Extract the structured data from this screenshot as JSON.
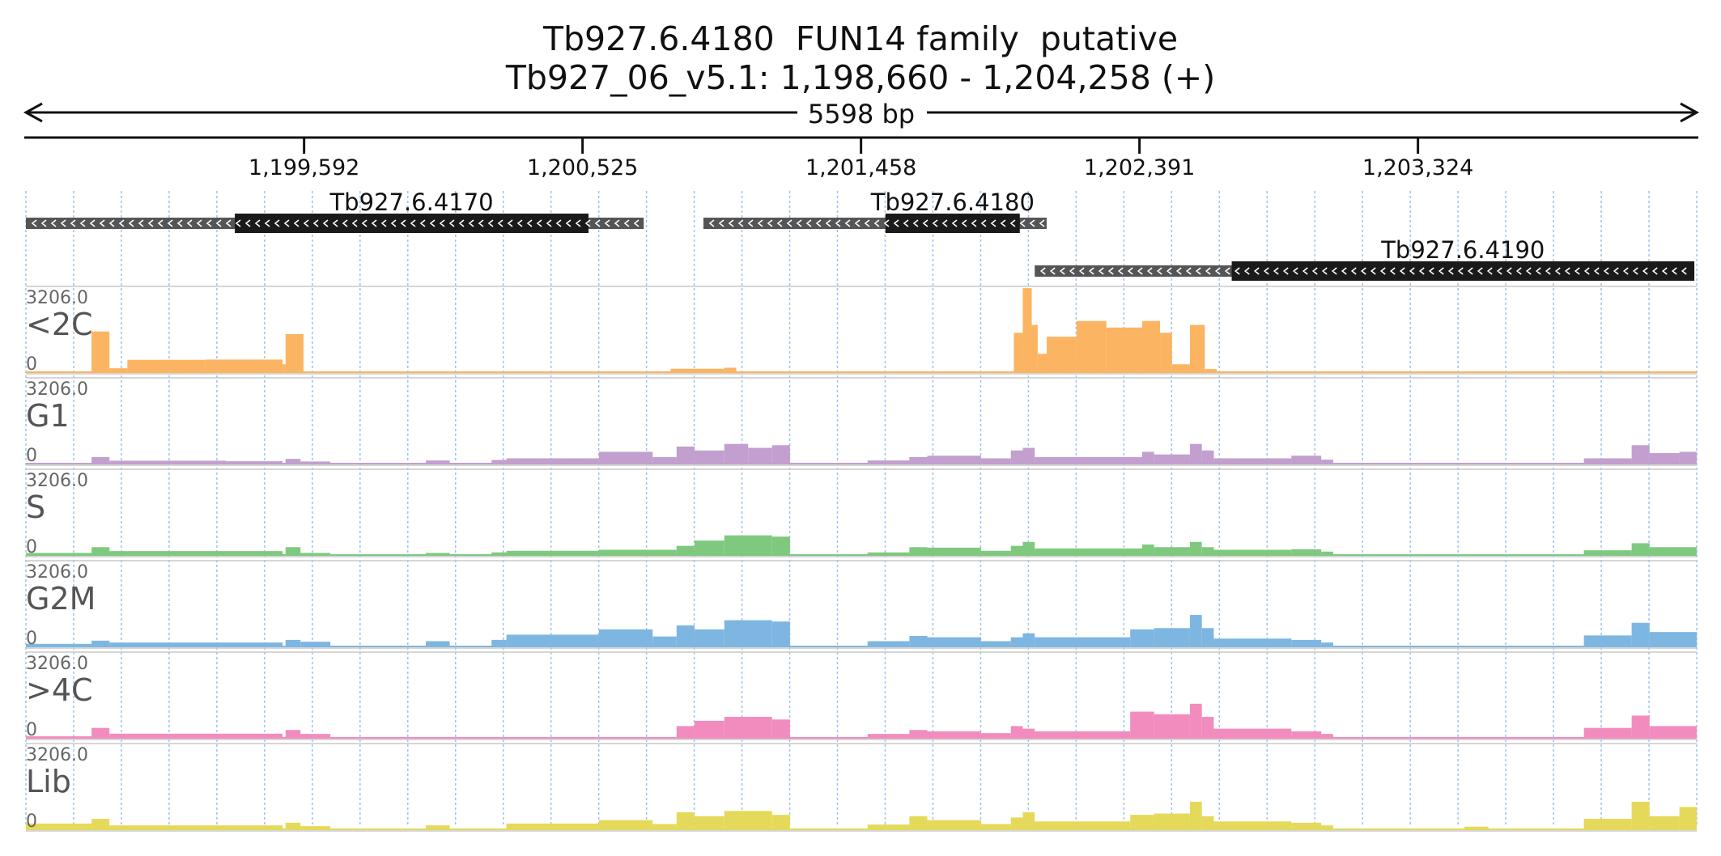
{
  "header": {
    "title": "Tb927.6.4180  FUN14 family  putative",
    "locus": "Tb927_06_v5.1: 1,198,660 - 1,204,258 (+)",
    "span_label": "5598 bp"
  },
  "chart_data": {
    "type": "area",
    "region": {
      "start": 1198660,
      "end": 1204258,
      "strand": "+"
    },
    "ruler_ticks": [
      {
        "pos": 1199592,
        "label": "1,199,592"
      },
      {
        "pos": 1200525,
        "label": "1,200,525"
      },
      {
        "pos": 1201458,
        "label": "1,201,458"
      },
      {
        "pos": 1202391,
        "label": "1,202,391"
      },
      {
        "pos": 1203324,
        "label": "1,203,324"
      }
    ],
    "genes": [
      {
        "name": "Tb927.6.4170",
        "strand": "-",
        "utr": [
          1198660,
          1200730
        ],
        "cds": [
          1199360,
          1200545
        ]
      },
      {
        "name": "Tb927.6.4180",
        "strand": "-",
        "utr": [
          1200930,
          1202080
        ],
        "cds": [
          1201540,
          1201990
        ]
      },
      {
        "name": "Tb927.6.4190",
        "strand": "-",
        "utr": [
          1202040,
          1204250
        ],
        "cds": [
          1202700,
          1204250
        ]
      }
    ],
    "tracks": [
      {
        "name": "<2C",
        "color": "#fbb462",
        "max": 3206.0,
        "min": 0,
        "peaks": [
          [
            1198880,
            1198940,
            1550
          ],
          [
            1198940,
            1199000,
            150
          ],
          [
            1199000,
            1199260,
            470
          ],
          [
            1199260,
            1199520,
            480
          ],
          [
            1199520,
            1199530,
            300
          ],
          [
            1199530,
            1199590,
            1450
          ],
          [
            1200820,
            1201000,
            130
          ],
          [
            1201000,
            1201040,
            170
          ],
          [
            1201970,
            1202000,
            1500
          ],
          [
            1202000,
            1202030,
            3200
          ],
          [
            1202030,
            1202050,
            1800
          ],
          [
            1202050,
            1202080,
            700
          ],
          [
            1202080,
            1202180,
            1350
          ],
          [
            1202180,
            1202280,
            1950
          ],
          [
            1202280,
            1202400,
            1700
          ],
          [
            1202400,
            1202460,
            1950
          ],
          [
            1202460,
            1202500,
            1500
          ],
          [
            1202500,
            1202560,
            300
          ],
          [
            1202560,
            1202610,
            1800
          ],
          [
            1202610,
            1202650,
            120
          ]
        ]
      },
      {
        "name": "G1",
        "color": "#c29fcf",
        "max": 3206.0,
        "min": 0,
        "peaks": [
          [
            1198880,
            1198940,
            250
          ],
          [
            1198940,
            1199330,
            110
          ],
          [
            1199330,
            1199520,
            90
          ],
          [
            1199530,
            1199580,
            180
          ],
          [
            1199580,
            1199680,
            80
          ],
          [
            1200000,
            1200080,
            120
          ],
          [
            1200220,
            1200270,
            140
          ],
          [
            1200270,
            1200580,
            200
          ],
          [
            1200580,
            1200760,
            450
          ],
          [
            1200760,
            1200840,
            250
          ],
          [
            1200840,
            1200900,
            650
          ],
          [
            1200900,
            1201000,
            500
          ],
          [
            1201000,
            1201080,
            750
          ],
          [
            1201080,
            1201160,
            600
          ],
          [
            1201160,
            1201220,
            700
          ],
          [
            1201480,
            1201620,
            120
          ],
          [
            1201620,
            1201680,
            250
          ],
          [
            1201680,
            1201860,
            300
          ],
          [
            1201860,
            1201960,
            200
          ],
          [
            1201960,
            1202000,
            500
          ],
          [
            1202000,
            1202040,
            600
          ],
          [
            1202040,
            1202400,
            250
          ],
          [
            1202400,
            1202440,
            450
          ],
          [
            1202440,
            1202560,
            350
          ],
          [
            1202560,
            1202600,
            750
          ],
          [
            1202600,
            1202640,
            500
          ],
          [
            1202640,
            1202900,
            200
          ],
          [
            1202900,
            1203000,
            300
          ],
          [
            1203000,
            1203040,
            150
          ],
          [
            1203880,
            1204040,
            200
          ],
          [
            1204040,
            1204100,
            700
          ],
          [
            1204100,
            1204200,
            400
          ],
          [
            1204200,
            1204258,
            450
          ]
        ]
      },
      {
        "name": "S",
        "color": "#7fc97f",
        "max": 3206.0,
        "min": 0,
        "peaks": [
          [
            1198660,
            1198880,
            80
          ],
          [
            1198880,
            1198940,
            300
          ],
          [
            1198940,
            1199520,
            150
          ],
          [
            1199530,
            1199580,
            300
          ],
          [
            1199580,
            1199680,
            80
          ],
          [
            1200000,
            1200080,
            80
          ],
          [
            1200220,
            1200270,
            100
          ],
          [
            1200270,
            1200580,
            160
          ],
          [
            1200580,
            1200840,
            200
          ],
          [
            1200840,
            1200900,
            350
          ],
          [
            1200900,
            1201000,
            550
          ],
          [
            1201000,
            1201160,
            750
          ],
          [
            1201160,
            1201220,
            700
          ],
          [
            1201480,
            1201620,
            100
          ],
          [
            1201620,
            1201680,
            300
          ],
          [
            1201680,
            1201860,
            280
          ],
          [
            1201860,
            1201960,
            160
          ],
          [
            1201960,
            1202000,
            350
          ],
          [
            1202000,
            1202040,
            500
          ],
          [
            1202040,
            1202400,
            250
          ],
          [
            1202400,
            1202440,
            400
          ],
          [
            1202440,
            1202560,
            300
          ],
          [
            1202560,
            1202600,
            500
          ],
          [
            1202600,
            1202640,
            300
          ],
          [
            1202640,
            1202900,
            200
          ],
          [
            1202900,
            1203000,
            220
          ],
          [
            1203000,
            1203040,
            130
          ],
          [
            1203880,
            1204040,
            180
          ],
          [
            1204040,
            1204100,
            450
          ],
          [
            1204100,
            1204258,
            300
          ]
        ]
      },
      {
        "name": "G2M",
        "color": "#7eb6e2",
        "max": 3206.0,
        "min": 0,
        "peaks": [
          [
            1198660,
            1198880,
            100
          ],
          [
            1198880,
            1198940,
            220
          ],
          [
            1198940,
            1199520,
            150
          ],
          [
            1199530,
            1199580,
            250
          ],
          [
            1199580,
            1199680,
            180
          ],
          [
            1200000,
            1200080,
            200
          ],
          [
            1200220,
            1200270,
            250
          ],
          [
            1200270,
            1200580,
            450
          ],
          [
            1200580,
            1200760,
            650
          ],
          [
            1200760,
            1200840,
            380
          ],
          [
            1200840,
            1200900,
            800
          ],
          [
            1200900,
            1201000,
            650
          ],
          [
            1201000,
            1201160,
            1000
          ],
          [
            1201160,
            1201220,
            950
          ],
          [
            1201480,
            1201620,
            200
          ],
          [
            1201620,
            1201680,
            400
          ],
          [
            1201680,
            1201860,
            350
          ],
          [
            1201860,
            1201960,
            200
          ],
          [
            1201960,
            1202000,
            350
          ],
          [
            1202000,
            1202040,
            500
          ],
          [
            1202040,
            1202360,
            350
          ],
          [
            1202360,
            1202440,
            650
          ],
          [
            1202440,
            1202560,
            700
          ],
          [
            1202560,
            1202600,
            1200
          ],
          [
            1202600,
            1202640,
            700
          ],
          [
            1202640,
            1202900,
            300
          ],
          [
            1202900,
            1203000,
            250
          ],
          [
            1203000,
            1203040,
            150
          ],
          [
            1203880,
            1204040,
            420
          ],
          [
            1204040,
            1204100,
            900
          ],
          [
            1204100,
            1204258,
            550
          ]
        ]
      },
      {
        "name": ">4C",
        "color": "#f28cbe",
        "max": 3206.0,
        "min": 0,
        "peaks": [
          [
            1198660,
            1198880,
            60
          ],
          [
            1198880,
            1198940,
            380
          ],
          [
            1198940,
            1199520,
            160
          ],
          [
            1199530,
            1199580,
            300
          ],
          [
            1199580,
            1199680,
            150
          ],
          [
            1200840,
            1200900,
            450
          ],
          [
            1200900,
            1201000,
            650
          ],
          [
            1201000,
            1201160,
            800
          ],
          [
            1201160,
            1201220,
            700
          ],
          [
            1201480,
            1201620,
            150
          ],
          [
            1201620,
            1201680,
            300
          ],
          [
            1201680,
            1201860,
            250
          ],
          [
            1201860,
            1201960,
            180
          ],
          [
            1201960,
            1202000,
            450
          ],
          [
            1202000,
            1202040,
            350
          ],
          [
            1202040,
            1202360,
            250
          ],
          [
            1202360,
            1202440,
            1000
          ],
          [
            1202440,
            1202560,
            900
          ],
          [
            1202560,
            1202600,
            1300
          ],
          [
            1202600,
            1202640,
            800
          ],
          [
            1202640,
            1202900,
            350
          ],
          [
            1202900,
            1203000,
            250
          ],
          [
            1203000,
            1203040,
            150
          ],
          [
            1203880,
            1204040,
            380
          ],
          [
            1204040,
            1204100,
            850
          ],
          [
            1204100,
            1204258,
            450
          ]
        ]
      },
      {
        "name": "Lib",
        "color": "#e5d95b",
        "max": 3206.0,
        "min": 0,
        "peaks": [
          [
            1198660,
            1198880,
            220
          ],
          [
            1198880,
            1198940,
            400
          ],
          [
            1198940,
            1199520,
            150
          ],
          [
            1199530,
            1199580,
            250
          ],
          [
            1199580,
            1199680,
            120
          ],
          [
            1200000,
            1200080,
            150
          ],
          [
            1200270,
            1200580,
            220
          ],
          [
            1200580,
            1200760,
            350
          ],
          [
            1200760,
            1200840,
            200
          ],
          [
            1200840,
            1200900,
            650
          ],
          [
            1200900,
            1201000,
            500
          ],
          [
            1201000,
            1201160,
            700
          ],
          [
            1201160,
            1201220,
            550
          ],
          [
            1201480,
            1201620,
            180
          ],
          [
            1201620,
            1201680,
            500
          ],
          [
            1201680,
            1201860,
            350
          ],
          [
            1201860,
            1201960,
            200
          ],
          [
            1201960,
            1202000,
            450
          ],
          [
            1202000,
            1202040,
            650
          ],
          [
            1202040,
            1202360,
            300
          ],
          [
            1202360,
            1202440,
            550
          ],
          [
            1202440,
            1202560,
            600
          ],
          [
            1202560,
            1202600,
            1050
          ],
          [
            1202600,
            1202640,
            500
          ],
          [
            1202640,
            1202900,
            300
          ],
          [
            1202900,
            1203000,
            250
          ],
          [
            1203000,
            1203040,
            150
          ],
          [
            1203480,
            1203560,
            100
          ],
          [
            1203880,
            1204040,
            400
          ],
          [
            1204040,
            1204100,
            1050
          ],
          [
            1204100,
            1204200,
            500
          ],
          [
            1204200,
            1204258,
            850
          ]
        ]
      }
    ]
  }
}
